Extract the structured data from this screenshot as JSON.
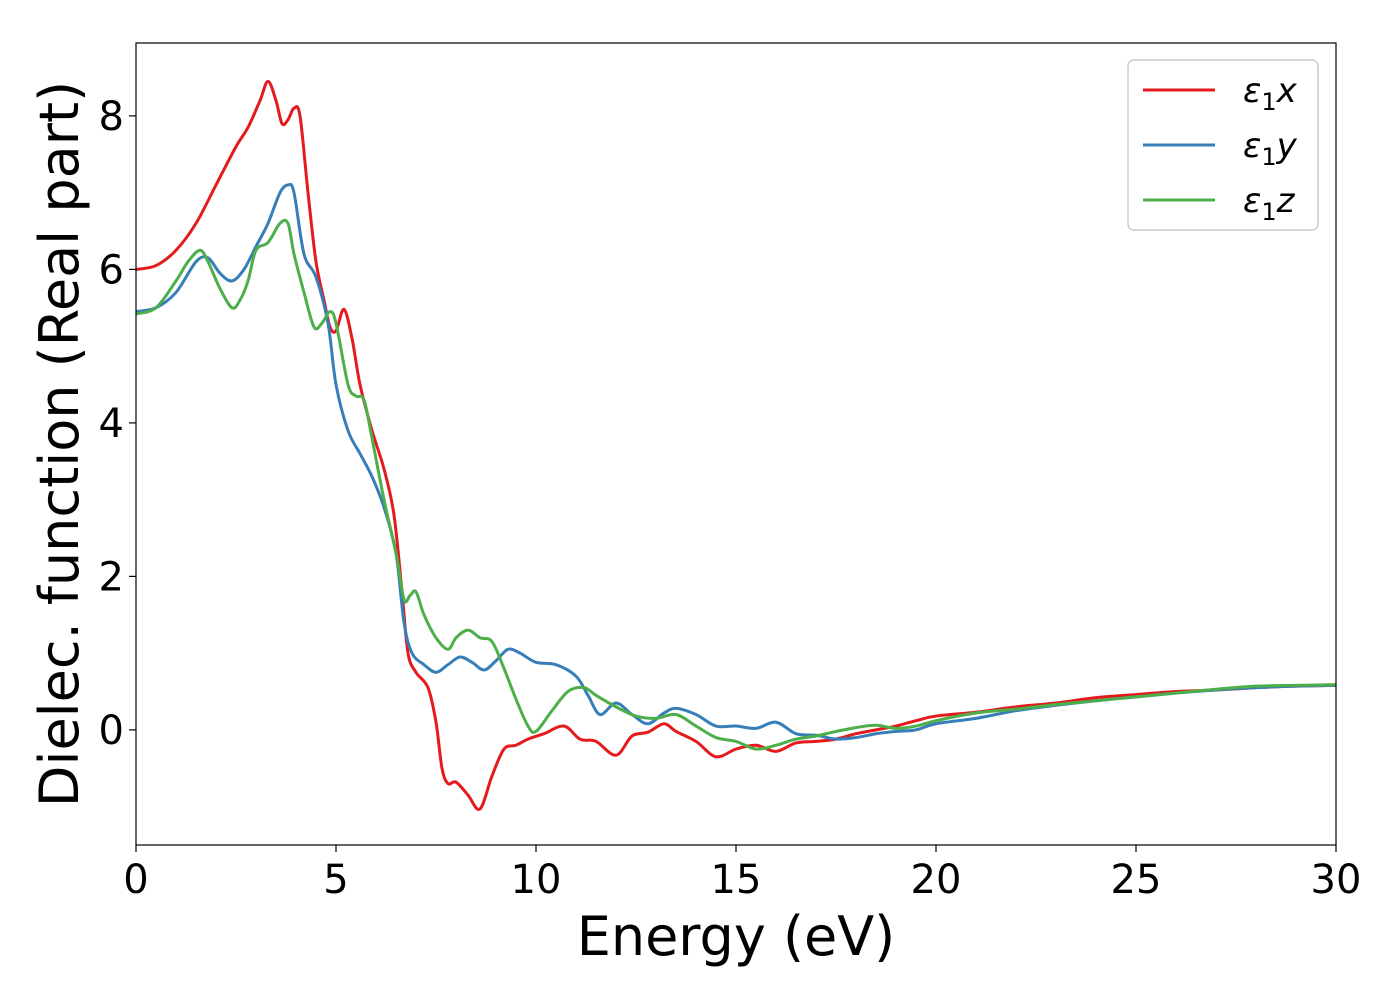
{
  "chart_data": {
    "type": "line",
    "title": "",
    "xlabel": "Energy (eV)",
    "ylabel": "Dielec. function (Real part)",
    "xlim": [
      0,
      30
    ],
    "ylim": [
      -1.5,
      8.95
    ],
    "xticks": [
      0,
      5,
      10,
      15,
      20,
      25,
      30
    ],
    "xtick_labels": [
      "0",
      "5",
      "10",
      "15",
      "20",
      "25",
      "30"
    ],
    "yticks": [
      0,
      2,
      4,
      6,
      8
    ],
    "ytick_labels": [
      "0",
      "2",
      "4",
      "6",
      "8"
    ],
    "grid": false,
    "legend_position": "top-right",
    "series": [
      {
        "name": "ε1x",
        "legend_base": "ε",
        "legend_sub": "1",
        "legend_tail": "x",
        "color": "#e41a1c",
        "x": [
          0,
          0.5,
          1.0,
          1.5,
          2.0,
          2.5,
          2.8,
          3.1,
          3.3,
          3.5,
          3.65,
          3.8,
          3.95,
          4.1,
          4.3,
          4.5,
          4.7,
          4.85,
          5.0,
          5.2,
          5.4,
          5.6,
          5.9,
          6.2,
          6.45,
          6.65,
          6.8,
          7.0,
          7.3,
          7.5,
          7.65,
          7.8,
          8.0,
          8.3,
          8.6,
          8.9,
          9.2,
          9.5,
          9.8,
          10.2,
          10.7,
          11.1,
          11.5,
          12.0,
          12.4,
          12.8,
          13.2,
          13.5,
          14.0,
          14.5,
          15.0,
          15.5,
          16.0,
          16.5,
          17.0,
          17.5,
          18.0,
          18.5,
          19.0,
          19.5,
          20.0,
          21.0,
          22.0,
          23.0,
          24.0,
          25.0,
          26.0,
          27.0,
          28.0,
          29.0,
          30.0
        ],
        "y": [
          6.0,
          6.05,
          6.25,
          6.6,
          7.1,
          7.6,
          7.85,
          8.2,
          8.45,
          8.2,
          7.9,
          7.95,
          8.1,
          8.0,
          7.0,
          6.1,
          5.6,
          5.25,
          5.2,
          5.48,
          5.1,
          4.5,
          3.9,
          3.4,
          2.8,
          1.8,
          1.0,
          0.75,
          0.55,
          0.1,
          -0.5,
          -0.7,
          -0.68,
          -0.85,
          -1.03,
          -0.6,
          -0.25,
          -0.2,
          -0.12,
          -0.05,
          0.05,
          -0.12,
          -0.15,
          -0.33,
          -0.08,
          -0.03,
          0.08,
          -0.02,
          -0.15,
          -0.35,
          -0.25,
          -0.2,
          -0.28,
          -0.17,
          -0.15,
          -0.12,
          -0.05,
          0.0,
          0.05,
          0.12,
          0.18,
          0.23,
          0.3,
          0.35,
          0.42,
          0.46,
          0.5,
          0.52,
          0.55,
          0.57,
          0.58
        ]
      },
      {
        "name": "ε1y",
        "legend_base": "ε",
        "legend_sub": "1",
        "legend_tail": "y",
        "color": "#377eb8",
        "x": [
          0,
          0.5,
          1.0,
          1.5,
          1.8,
          2.1,
          2.4,
          2.7,
          3.0,
          3.3,
          3.6,
          3.8,
          3.95,
          4.2,
          4.5,
          4.8,
          5.0,
          5.3,
          5.6,
          5.9,
          6.2,
          6.5,
          6.7,
          6.9,
          7.2,
          7.5,
          7.8,
          8.1,
          8.4,
          8.7,
          9.0,
          9.3,
          9.6,
          10.0,
          10.5,
          11.0,
          11.3,
          11.6,
          12.0,
          12.4,
          12.8,
          13.2,
          13.5,
          14.0,
          14.5,
          15.0,
          15.5,
          16.0,
          16.5,
          17.0,
          17.5,
          18.0,
          18.5,
          19.0,
          19.5,
          20.0,
          21.0,
          22.0,
          23.0,
          24.0,
          25.0,
          26.0,
          27.0,
          28.0,
          29.0,
          30.0
        ],
        "y": [
          5.45,
          5.5,
          5.7,
          6.1,
          6.15,
          5.95,
          5.85,
          6.0,
          6.3,
          6.6,
          7.0,
          7.1,
          7.0,
          6.2,
          5.9,
          5.3,
          4.5,
          3.9,
          3.6,
          3.3,
          2.9,
          2.3,
          1.4,
          1.0,
          0.85,
          0.75,
          0.85,
          0.95,
          0.88,
          0.78,
          0.9,
          1.05,
          1.0,
          0.88,
          0.85,
          0.7,
          0.45,
          0.2,
          0.35,
          0.2,
          0.08,
          0.22,
          0.28,
          0.2,
          0.05,
          0.05,
          0.02,
          0.1,
          -0.05,
          -0.07,
          -0.12,
          -0.1,
          -0.05,
          -0.02,
          0.0,
          0.08,
          0.15,
          0.25,
          0.32,
          0.38,
          0.43,
          0.48,
          0.52,
          0.55,
          0.57,
          0.58
        ]
      },
      {
        "name": "ε1z",
        "legend_base": "ε",
        "legend_sub": "1",
        "legend_tail": "z",
        "color": "#4daf4a",
        "x": [
          0,
          0.5,
          1.0,
          1.3,
          1.6,
          1.8,
          2.1,
          2.4,
          2.6,
          2.8,
          3.0,
          3.3,
          3.6,
          3.8,
          3.95,
          4.2,
          4.45,
          4.65,
          4.85,
          5.0,
          5.3,
          5.5,
          5.7,
          5.9,
          6.2,
          6.5,
          6.7,
          6.85,
          7.0,
          7.2,
          7.5,
          7.8,
          8.0,
          8.3,
          8.6,
          8.9,
          9.2,
          9.5,
          9.8,
          10.0,
          10.4,
          10.8,
          11.2,
          11.5,
          12.0,
          12.5,
          13.0,
          13.5,
          14.0,
          14.5,
          15.0,
          15.5,
          16.0,
          16.5,
          17.0,
          17.5,
          18.0,
          18.5,
          19.0,
          19.5,
          20.0,
          21.0,
          22.0,
          23.0,
          24.0,
          25.0,
          26.0,
          27.0,
          28.0,
          29.0,
          30.0
        ],
        "y": [
          5.42,
          5.5,
          5.85,
          6.1,
          6.25,
          6.1,
          5.75,
          5.5,
          5.6,
          5.85,
          6.25,
          6.35,
          6.6,
          6.6,
          6.2,
          5.7,
          5.25,
          5.3,
          5.45,
          5.3,
          4.5,
          4.35,
          4.3,
          3.8,
          3.0,
          2.3,
          1.7,
          1.75,
          1.8,
          1.5,
          1.2,
          1.05,
          1.2,
          1.3,
          1.2,
          1.15,
          0.8,
          0.4,
          0.05,
          -0.02,
          0.25,
          0.5,
          0.55,
          0.45,
          0.3,
          0.18,
          0.15,
          0.2,
          0.05,
          -0.1,
          -0.15,
          -0.25,
          -0.2,
          -0.12,
          -0.08,
          -0.02,
          0.03,
          0.06,
          0.02,
          0.05,
          0.12,
          0.22,
          0.27,
          0.33,
          0.38,
          0.43,
          0.48,
          0.53,
          0.57,
          0.58,
          0.59
        ]
      }
    ]
  }
}
